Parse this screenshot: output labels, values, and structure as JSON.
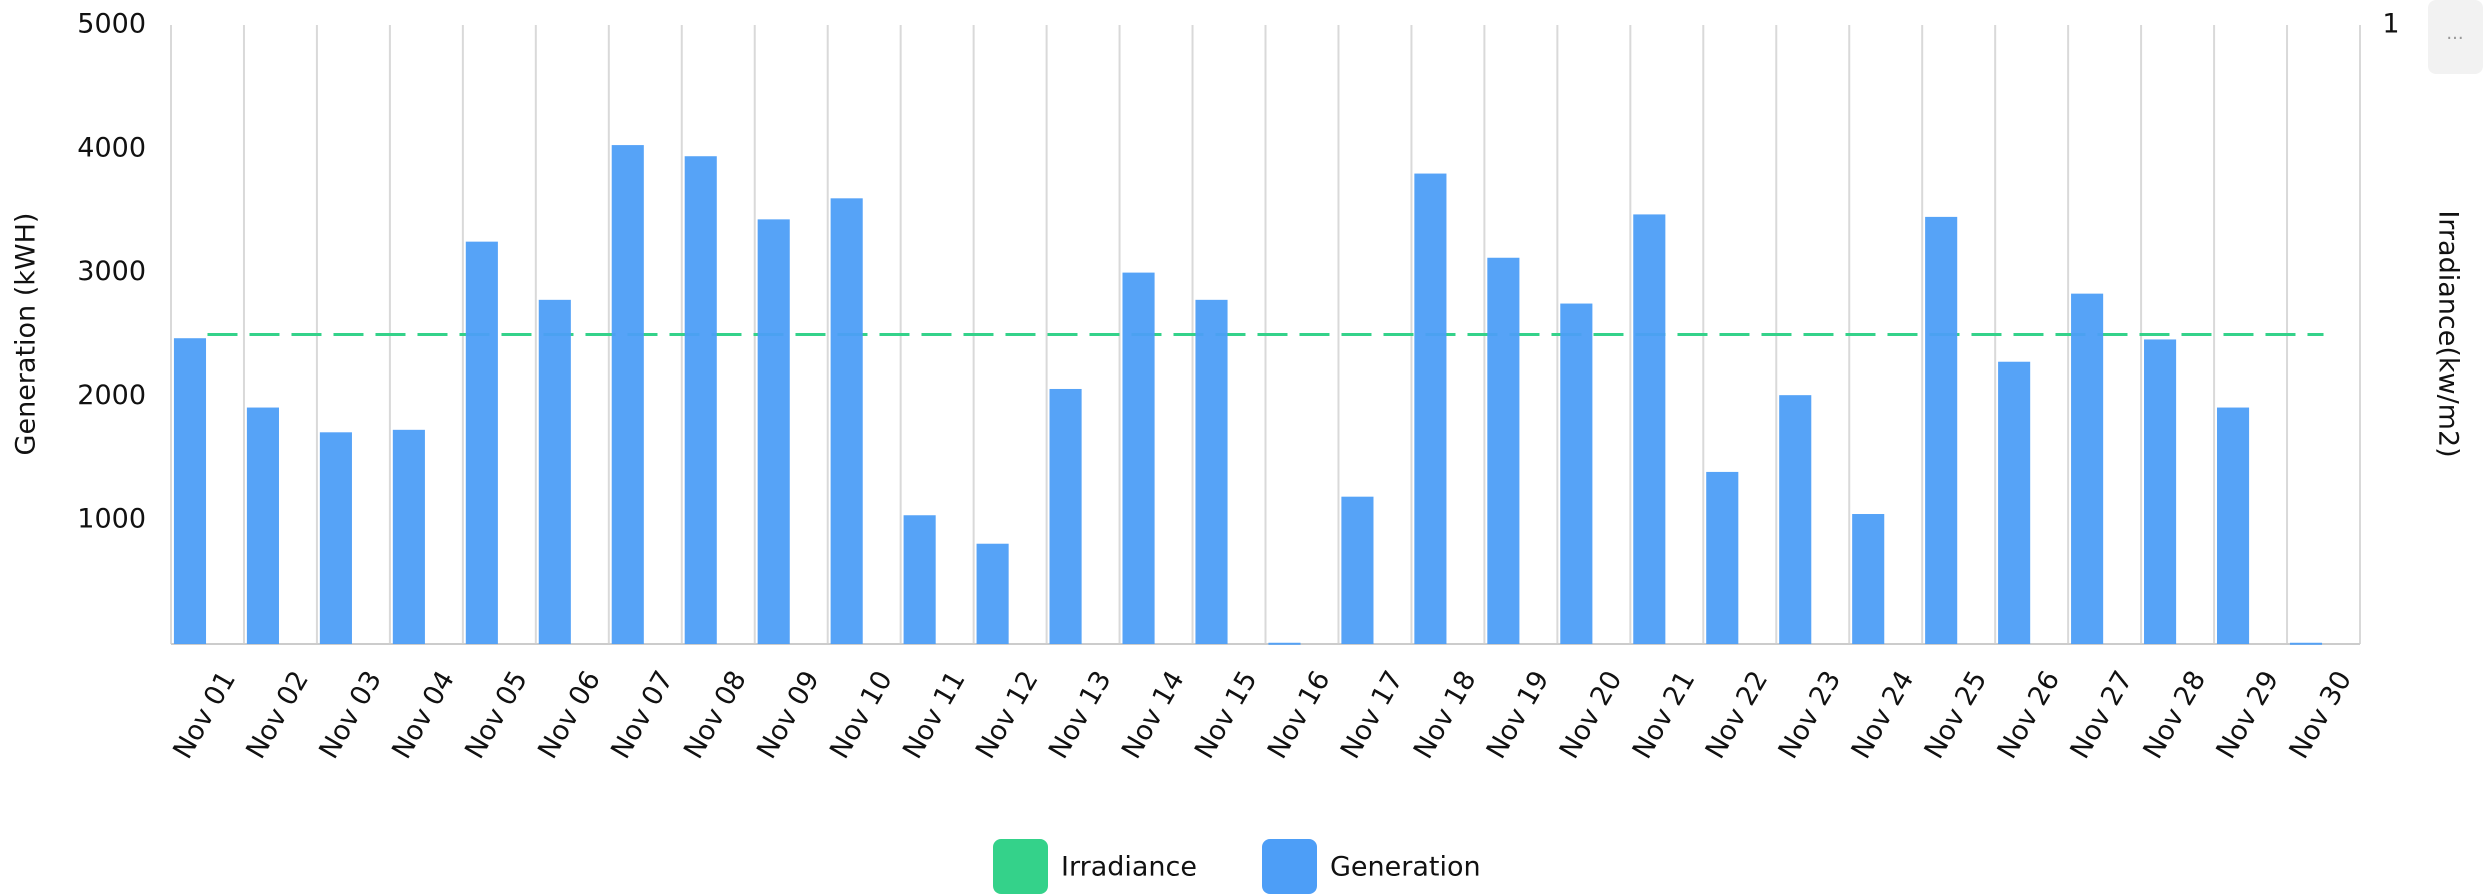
{
  "chart_data": {
    "type": "bar",
    "categories": [
      "Nov 01",
      "Nov 02",
      "Nov 03",
      "Nov 04",
      "Nov 05",
      "Nov 06",
      "Nov 07",
      "Nov 08",
      "Nov 09",
      "Nov 10",
      "Nov 11",
      "Nov 12",
      "Nov 13",
      "Nov 14",
      "Nov 15",
      "Nov 16",
      "Nov 17",
      "Nov 18",
      "Nov 19",
      "Nov 20",
      "Nov 21",
      "Nov 22",
      "Nov 23",
      "Nov 24",
      "Nov 25",
      "Nov 26",
      "Nov 27",
      "Nov 28",
      "Nov 29",
      "Nov 30"
    ],
    "series": [
      {
        "name": "Irradiance",
        "type": "line",
        "color": "#34d28a",
        "axis": "y2",
        "values": [
          0.5,
          0.5,
          0.5,
          0.5,
          0.5,
          0.5,
          0.5,
          0.5,
          0.5,
          0.5,
          0.5,
          0.5,
          0.5,
          0.5,
          0.5,
          0.5,
          0.5,
          0.5,
          0.5,
          0.5,
          0.5,
          0.5,
          0.5,
          0.5,
          0.5,
          0.5,
          0.5,
          0.5,
          0.5,
          0.5
        ]
      },
      {
        "name": "Generation",
        "type": "bar",
        "color": "#4d9ef7",
        "values": [
          2470,
          1910,
          1710,
          1730,
          3250,
          2780,
          4030,
          3940,
          3430,
          3600,
          1040,
          810,
          2060,
          3000,
          2780,
          10,
          1190,
          3800,
          3120,
          2750,
          3470,
          1390,
          2010,
          1050,
          3450,
          2280,
          2830,
          2460,
          1910,
          10
        ]
      }
    ],
    "y_label": "Generation (kWH)",
    "y2_label": "Irradiance(kw/m2)",
    "ylim": [
      0,
      5000
    ],
    "yticks": [
      1000,
      2000,
      3000,
      4000,
      5000
    ],
    "y2lim": [
      0,
      1
    ],
    "y2ticks": [
      1
    ],
    "legend": "bottom"
  },
  "menu_button": "..."
}
